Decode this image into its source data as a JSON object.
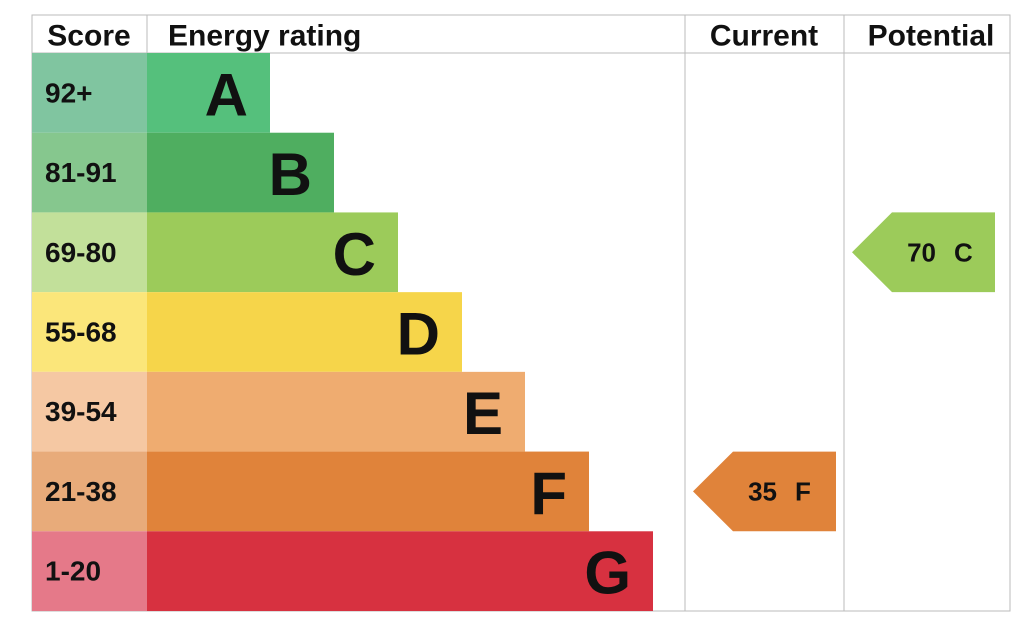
{
  "header": {
    "score": "Score",
    "rating": "Energy rating",
    "current": "Current",
    "potential": "Potential"
  },
  "bands": [
    {
      "score": "92+",
      "letter": "A",
      "color": "#55c07c",
      "score_color": "#80c5a0"
    },
    {
      "score": "81-91",
      "letter": "B",
      "color": "#4fae60",
      "score_color": "#86c78e"
    },
    {
      "score": "69-80",
      "letter": "C",
      "color": "#9ccb5a",
      "score_color": "#c2e09a"
    },
    {
      "score": "55-68",
      "letter": "D",
      "color": "#f6d54a",
      "score_color": "#fbe67a"
    },
    {
      "score": "39-54",
      "letter": "E",
      "color": "#efac70",
      "score_color": "#f5c8a3"
    },
    {
      "score": "21-38",
      "letter": "F",
      "color": "#e0833a",
      "score_color": "#e8ab7a"
    },
    {
      "score": "1-20",
      "letter": "G",
      "color": "#d73140",
      "score_color": "#e57989"
    }
  ],
  "current": {
    "value": "35",
    "letter": "F"
  },
  "potential": {
    "value": "70",
    "letter": "C"
  }
}
